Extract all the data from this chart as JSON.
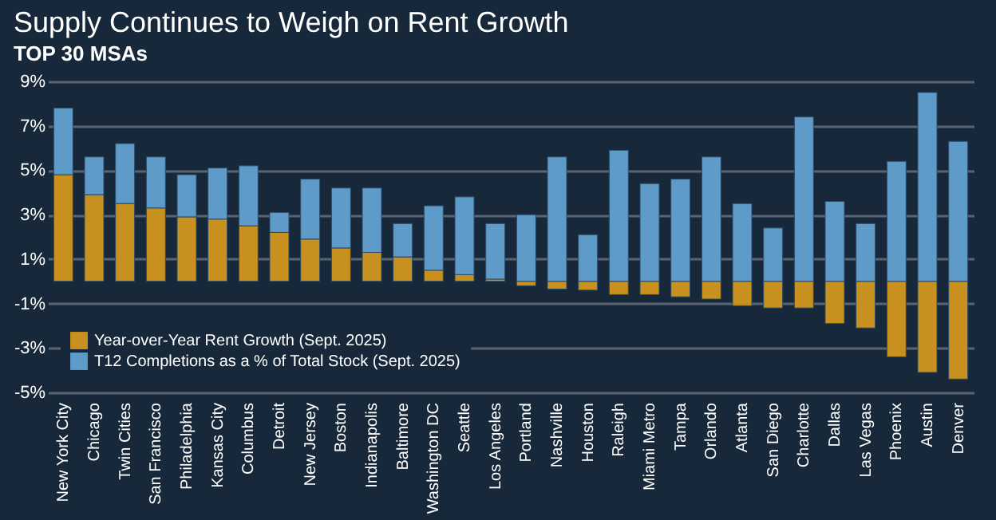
{
  "chart_data": {
    "type": "bar",
    "title": "Supply Continues to Weigh on Rent Growth",
    "subtitle": "TOP 30 MSAs",
    "categories": [
      "New York City",
      "Chicago",
      "Twin Cities",
      "San Francisco",
      "Philadelphia",
      "Kansas City",
      "Columbus",
      "Detroit",
      "New Jersey",
      "Boston",
      "Indianapolis",
      "Baltimore",
      "Washington DC",
      "Seattle",
      "Los Angeles",
      "Portland",
      "Nashville",
      "Houston",
      "Raleigh",
      "Miami Metro",
      "Tampa",
      "Orlando",
      "Atlanta",
      "San Diego",
      "Charlotte",
      "Dallas",
      "Las Vegas",
      "Phoenix",
      "Austin",
      "Denver"
    ],
    "stacked": true,
    "series": [
      {
        "name": "Year-over-Year Rent Growth (Sept. 2025)",
        "color": "#c8901e",
        "values": [
          4.8,
          3.9,
          3.5,
          3.3,
          2.9,
          2.8,
          2.5,
          2.2,
          1.9,
          1.5,
          1.3,
          1.1,
          0.5,
          0.3,
          0.1,
          -0.2,
          -0.35,
          -0.4,
          -0.6,
          -0.6,
          -0.7,
          -0.8,
          -1.1,
          -1.2,
          -1.2,
          -1.9,
          -2.1,
          -3.4,
          -4.1,
          -4.4
        ]
      },
      {
        "name": "T12 Completions as a % of Total Stock (Sept. 2025)",
        "color": "#5e9bc9",
        "values": [
          3.0,
          1.7,
          2.7,
          2.3,
          1.9,
          2.3,
          2.7,
          0.9,
          2.7,
          2.7,
          2.9,
          1.5,
          2.9,
          3.5,
          2.5,
          3.0,
          5.6,
          2.1,
          5.9,
          4.4,
          4.6,
          5.6,
          3.5,
          2.4,
          7.4,
          3.6,
          2.6,
          5.4,
          8.5,
          6.3
        ]
      }
    ],
    "ylim": [
      -5,
      9
    ],
    "yticks": [
      {
        "value": -5,
        "label": "-5%"
      },
      {
        "value": -3,
        "label": "-3%"
      },
      {
        "value": -1,
        "label": "-1%"
      },
      {
        "value": 1,
        "label": "1%"
      },
      {
        "value": 3,
        "label": "3%"
      },
      {
        "value": 5,
        "label": "5%"
      },
      {
        "value": 7,
        "label": "7%"
      },
      {
        "value": 9,
        "label": "9%"
      }
    ],
    "grid": true,
    "legend": "bottom left"
  }
}
